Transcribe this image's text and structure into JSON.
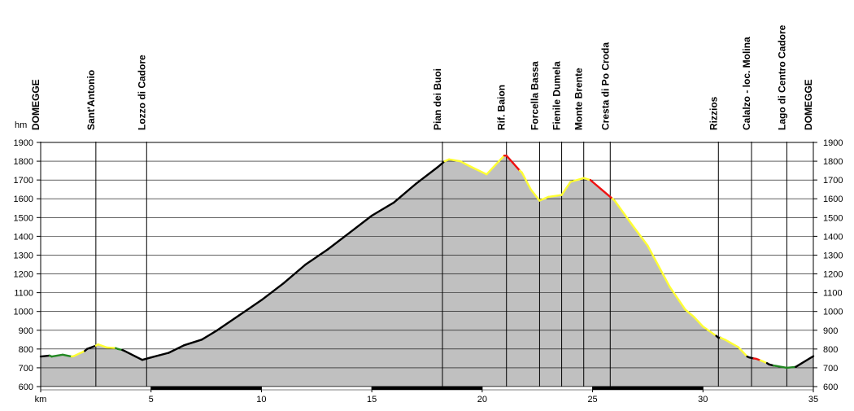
{
  "chart_data": {
    "type": "area",
    "ylabel": "hm",
    "xlabel": "km",
    "xlim": [
      0,
      35
    ],
    "ylim": [
      600,
      1900
    ],
    "x_ticks": [
      0,
      5,
      10,
      15,
      20,
      25,
      30,
      35
    ],
    "x_tick_labels": [
      "km",
      "5",
      "10",
      "15",
      "20",
      "25",
      "30",
      "35"
    ],
    "y_ticks": [
      600,
      700,
      800,
      900,
      1000,
      1100,
      1200,
      1300,
      1400,
      1500,
      1600,
      1700,
      1800,
      1900
    ],
    "grid": true,
    "fill_color": "#c0c0c0",
    "segment_colors": {
      "black": "#000000",
      "yellow": "#ffff33",
      "red": "#ee1111",
      "green": "#228822"
    },
    "waypoints": [
      {
        "label": "DOMEGGE",
        "km": 0,
        "bold": true
      },
      {
        "label": "Sant'Antonio",
        "km": 2.5
      },
      {
        "label": "Lozzo di Cadore",
        "km": 4.8
      },
      {
        "label": "Pian dei Buoi",
        "km": 18.2
      },
      {
        "label": "Rif. Baion",
        "km": 21.1
      },
      {
        "label": "Forcella Bassa",
        "km": 22.6
      },
      {
        "label": "Fienile Dumela",
        "km": 23.6
      },
      {
        "label": "Monte Brente",
        "km": 24.6
      },
      {
        "label": "Cresta di Po Croda",
        "km": 25.8
      },
      {
        "label": "Rizzios",
        "km": 30.7
      },
      {
        "label": "Calalzo - loc. Molina",
        "km": 32.2
      },
      {
        "label": "Lago di Centro Cadore",
        "km": 33.8
      },
      {
        "label": "DOMEGGE",
        "km": 35,
        "bold": true
      }
    ],
    "profile": [
      [
        0,
        760,
        "black"
      ],
      [
        0.4,
        765,
        "black"
      ],
      [
        0.5,
        760,
        "green"
      ],
      [
        1.0,
        770,
        "green"
      ],
      [
        1.4,
        760,
        "green"
      ],
      [
        1.5,
        762,
        "yellow"
      ],
      [
        2.0,
        790,
        "yellow"
      ],
      [
        2.1,
        800,
        "black"
      ],
      [
        2.5,
        818,
        "black"
      ],
      [
        2.6,
        825,
        "yellow"
      ],
      [
        3.0,
        808,
        "yellow"
      ],
      [
        3.4,
        805,
        "yellow"
      ],
      [
        3.5,
        800,
        "green"
      ],
      [
        3.7,
        795,
        "green"
      ],
      [
        3.8,
        790,
        "black"
      ],
      [
        4.3,
        760,
        "black"
      ],
      [
        4.6,
        742,
        "black"
      ],
      [
        5.0,
        755,
        "black"
      ],
      [
        5.8,
        780,
        "black"
      ],
      [
        6.5,
        820,
        "black"
      ],
      [
        7.3,
        850,
        "black"
      ],
      [
        8.0,
        900,
        "black"
      ],
      [
        9.0,
        980,
        "black"
      ],
      [
        10.0,
        1060,
        "black"
      ],
      [
        11.0,
        1150,
        "black"
      ],
      [
        12.0,
        1250,
        "black"
      ],
      [
        13.0,
        1330,
        "black"
      ],
      [
        14.0,
        1420,
        "black"
      ],
      [
        15.0,
        1510,
        "black"
      ],
      [
        16.0,
        1580,
        "black"
      ],
      [
        17.0,
        1680,
        "black"
      ],
      [
        18.0,
        1770,
        "black"
      ],
      [
        18.3,
        1800,
        "black"
      ],
      [
        18.5,
        1810,
        "yellow"
      ],
      [
        19.0,
        1800,
        "yellow"
      ],
      [
        19.5,
        1770,
        "yellow"
      ],
      [
        20.2,
        1730,
        "yellow"
      ],
      [
        20.6,
        1780,
        "yellow"
      ],
      [
        21.0,
        1830,
        "yellow"
      ],
      [
        21.1,
        1830,
        "red"
      ],
      [
        21.4,
        1790,
        "red"
      ],
      [
        21.7,
        1750,
        "red"
      ],
      [
        21.8,
        1740,
        "yellow"
      ],
      [
        22.2,
        1650,
        "yellow"
      ],
      [
        22.6,
        1590,
        "yellow"
      ],
      [
        23.0,
        1610,
        "yellow"
      ],
      [
        23.6,
        1620,
        "yellow"
      ],
      [
        24.0,
        1690,
        "yellow"
      ],
      [
        24.6,
        1710,
        "yellow"
      ],
      [
        24.9,
        1700,
        "yellow"
      ],
      [
        25.0,
        1690,
        "red"
      ],
      [
        25.4,
        1650,
        "red"
      ],
      [
        25.9,
        1600,
        "red"
      ],
      [
        26.0,
        1590,
        "yellow"
      ],
      [
        26.8,
        1460,
        "yellow"
      ],
      [
        27.5,
        1350,
        "yellow"
      ],
      [
        28.5,
        1130,
        "yellow"
      ],
      [
        29.2,
        1010,
        "yellow"
      ],
      [
        29.6,
        970,
        "yellow"
      ],
      [
        30.0,
        920,
        "yellow"
      ],
      [
        30.6,
        870,
        "yellow"
      ],
      [
        30.7,
        860,
        "black"
      ],
      [
        30.8,
        860,
        "black"
      ],
      [
        31.0,
        850,
        "yellow"
      ],
      [
        31.6,
        810,
        "yellow"
      ],
      [
        32.0,
        760,
        "yellow"
      ],
      [
        32.1,
        755,
        "black"
      ],
      [
        32.3,
        750,
        "black"
      ],
      [
        32.4,
        748,
        "red"
      ],
      [
        32.6,
        740,
        "red"
      ],
      [
        32.7,
        735,
        "yellow"
      ],
      [
        32.9,
        725,
        "yellow"
      ],
      [
        33.0,
        718,
        "black"
      ],
      [
        33.2,
        712,
        "black"
      ],
      [
        33.3,
        710,
        "green"
      ],
      [
        33.8,
        700,
        "green"
      ],
      [
        34.2,
        705,
        "green"
      ],
      [
        34.3,
        712,
        "black"
      ],
      [
        35.0,
        762,
        "black"
      ]
    ],
    "km_bar_dark_ranges": [
      [
        5,
        10
      ],
      [
        15,
        20
      ],
      [
        25,
        30
      ]
    ]
  }
}
